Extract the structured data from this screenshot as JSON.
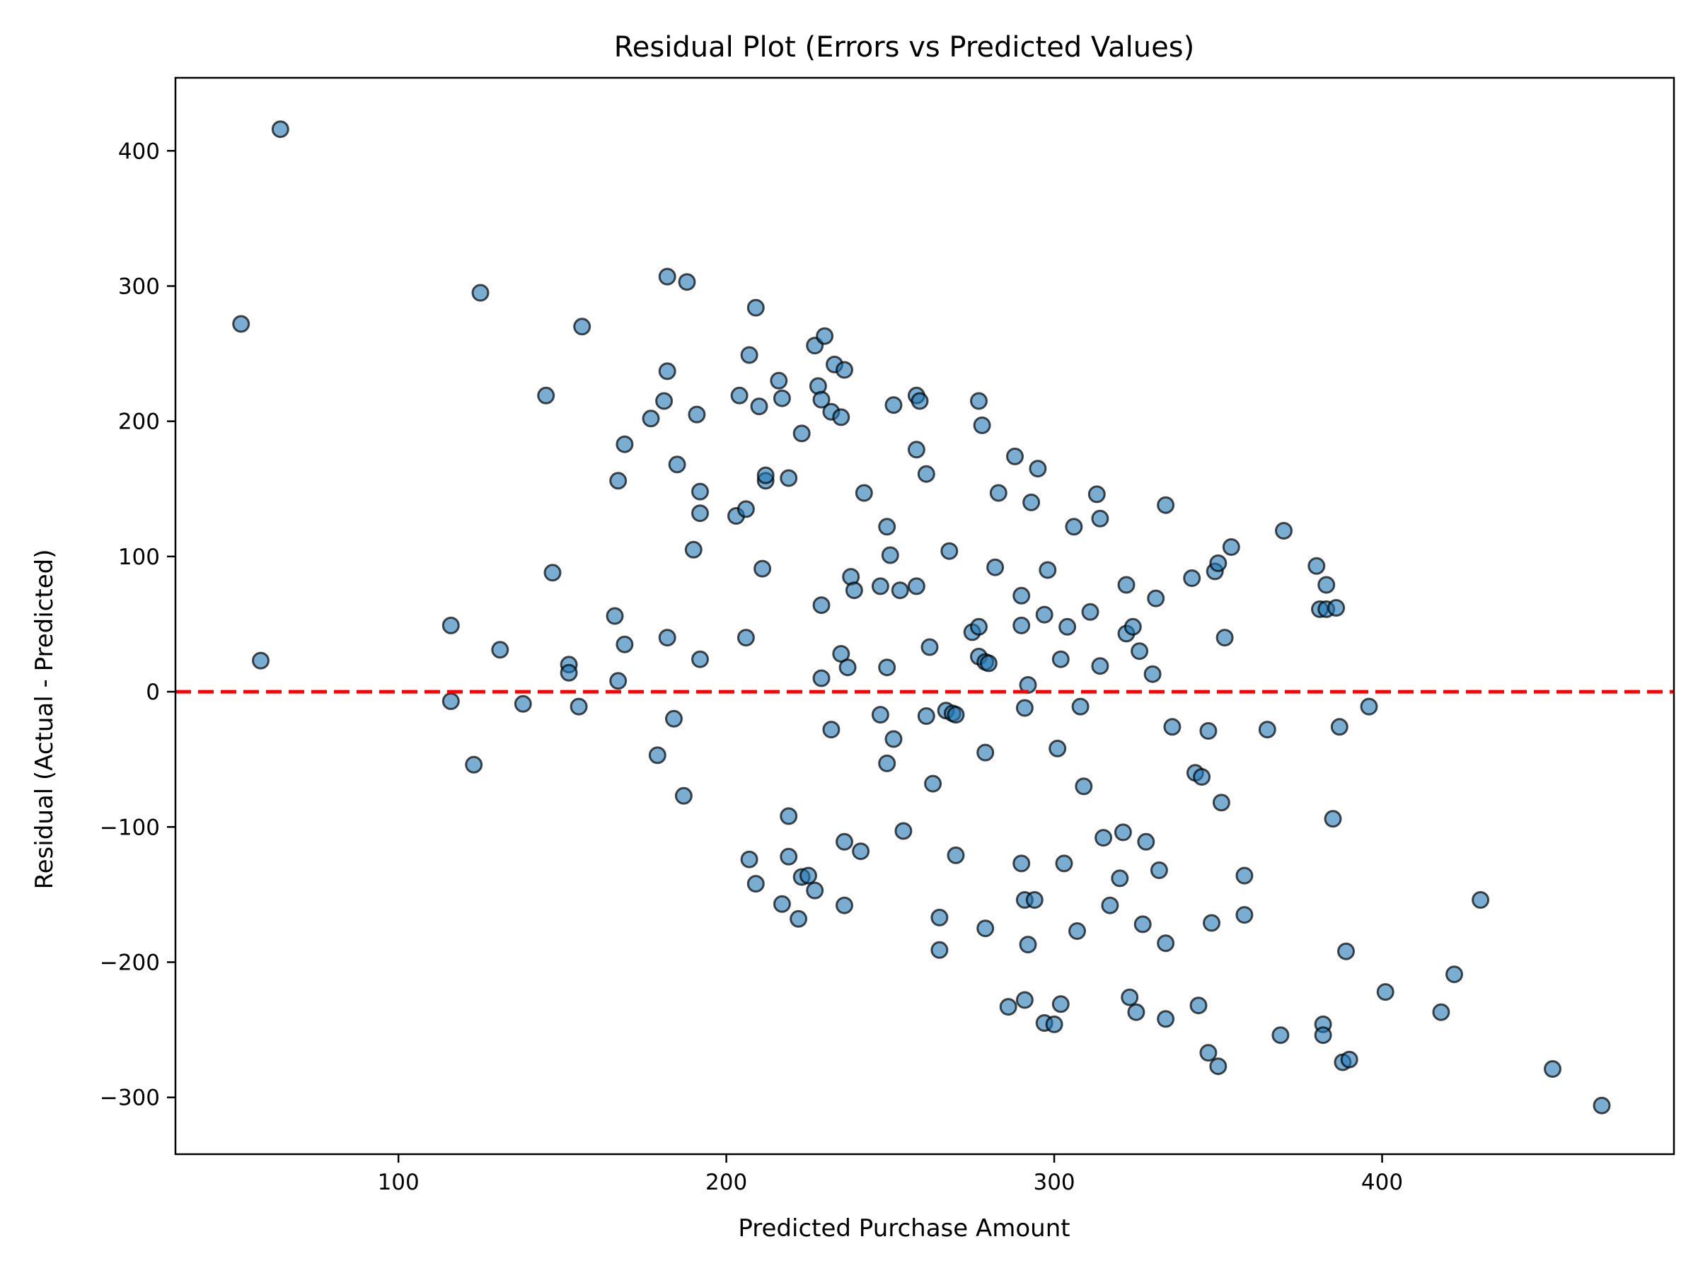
{
  "chart_data": {
    "type": "scatter",
    "title": "Residual Plot (Errors vs Predicted Values)",
    "xlabel": "Predicted Purchase Amount",
    "ylabel": "Residual (Actual - Predicted)",
    "xlim": [
      32,
      489
    ],
    "ylim": [
      -342,
      454
    ],
    "xticks": [
      100,
      200,
      300,
      400
    ],
    "xtick_labels": [
      "100",
      "200",
      "300",
      "400"
    ],
    "yticks": [
      -300,
      -200,
      -100,
      0,
      100,
      200,
      300,
      400
    ],
    "ytick_labels": [
      "−300",
      "−200",
      "−100",
      "0",
      "100",
      "200",
      "300",
      "400"
    ],
    "grid": false,
    "reference_line": {
      "y": 0,
      "style": "dashed",
      "color": "#ff0000"
    },
    "marker": {
      "fill": "#1f77b4",
      "fill_opacity": 0.6,
      "edge": "#000000"
    },
    "points": [
      {
        "x": 52,
        "y": 272
      },
      {
        "x": 58,
        "y": 23
      },
      {
        "x": 64,
        "y": 416
      },
      {
        "x": 116,
        "y": 49
      },
      {
        "x": 116,
        "y": -7
      },
      {
        "x": 123,
        "y": -54
      },
      {
        "x": 125,
        "y": 295
      },
      {
        "x": 131,
        "y": 31
      },
      {
        "x": 138,
        "y": -9
      },
      {
        "x": 145,
        "y": 219
      },
      {
        "x": 147,
        "y": 88
      },
      {
        "x": 152,
        "y": 20
      },
      {
        "x": 152,
        "y": 14
      },
      {
        "x": 155,
        "y": -11
      },
      {
        "x": 156,
        "y": 270
      },
      {
        "x": 166,
        "y": 56
      },
      {
        "x": 167,
        "y": 156
      },
      {
        "x": 167,
        "y": 8
      },
      {
        "x": 169,
        "y": 183
      },
      {
        "x": 169,
        "y": 35
      },
      {
        "x": 177,
        "y": 202
      },
      {
        "x": 179,
        "y": -47
      },
      {
        "x": 181,
        "y": 215
      },
      {
        "x": 182,
        "y": 307
      },
      {
        "x": 182,
        "y": 237
      },
      {
        "x": 182,
        "y": 40
      },
      {
        "x": 184,
        "y": -20
      },
      {
        "x": 185,
        "y": 168
      },
      {
        "x": 187,
        "y": -77
      },
      {
        "x": 188,
        "y": 303
      },
      {
        "x": 190,
        "y": 105
      },
      {
        "x": 191,
        "y": 205
      },
      {
        "x": 192,
        "y": 148
      },
      {
        "x": 192,
        "y": 132
      },
      {
        "x": 192,
        "y": 24
      },
      {
        "x": 203,
        "y": 130
      },
      {
        "x": 204,
        "y": 219
      },
      {
        "x": 206,
        "y": 135
      },
      {
        "x": 206,
        "y": 40
      },
      {
        "x": 207,
        "y": 249
      },
      {
        "x": 207,
        "y": -124
      },
      {
        "x": 209,
        "y": 284
      },
      {
        "x": 209,
        "y": -142
      },
      {
        "x": 210,
        "y": 211
      },
      {
        "x": 211,
        "y": 91
      },
      {
        "x": 212,
        "y": 156
      },
      {
        "x": 212,
        "y": 160
      },
      {
        "x": 216,
        "y": 230
      },
      {
        "x": 217,
        "y": 217
      },
      {
        "x": 217,
        "y": -157
      },
      {
        "x": 219,
        "y": 158
      },
      {
        "x": 219,
        "y": -92
      },
      {
        "x": 219,
        "y": -122
      },
      {
        "x": 222,
        "y": -168
      },
      {
        "x": 223,
        "y": 191
      },
      {
        "x": 223,
        "y": -137
      },
      {
        "x": 225,
        "y": -136
      },
      {
        "x": 227,
        "y": 256
      },
      {
        "x": 227,
        "y": -147
      },
      {
        "x": 228,
        "y": 226
      },
      {
        "x": 229,
        "y": 216
      },
      {
        "x": 229,
        "y": 10
      },
      {
        "x": 229,
        "y": 64
      },
      {
        "x": 230,
        "y": 263
      },
      {
        "x": 232,
        "y": 207
      },
      {
        "x": 232,
        "y": -28
      },
      {
        "x": 233,
        "y": 242
      },
      {
        "x": 235,
        "y": 203
      },
      {
        "x": 235,
        "y": 28
      },
      {
        "x": 236,
        "y": 238
      },
      {
        "x": 236,
        "y": -111
      },
      {
        "x": 236,
        "y": -158
      },
      {
        "x": 237,
        "y": 18
      },
      {
        "x": 238,
        "y": 85
      },
      {
        "x": 239,
        "y": 75
      },
      {
        "x": 241,
        "y": -118
      },
      {
        "x": 242,
        "y": 147
      },
      {
        "x": 247,
        "y": 78
      },
      {
        "x": 247,
        "y": -17
      },
      {
        "x": 249,
        "y": 122
      },
      {
        "x": 249,
        "y": 18
      },
      {
        "x": 249,
        "y": -53
      },
      {
        "x": 250,
        "y": 101
      },
      {
        "x": 251,
        "y": 212
      },
      {
        "x": 251,
        "y": -35
      },
      {
        "x": 253,
        "y": 75
      },
      {
        "x": 254,
        "y": -103
      },
      {
        "x": 258,
        "y": 219
      },
      {
        "x": 258,
        "y": 179
      },
      {
        "x": 258,
        "y": 78
      },
      {
        "x": 259,
        "y": 215
      },
      {
        "x": 261,
        "y": 161
      },
      {
        "x": 261,
        "y": -18
      },
      {
        "x": 262,
        "y": 33
      },
      {
        "x": 263,
        "y": -68
      },
      {
        "x": 265,
        "y": -167
      },
      {
        "x": 265,
        "y": -191
      },
      {
        "x": 267,
        "y": -14
      },
      {
        "x": 268,
        "y": 104
      },
      {
        "x": 269,
        "y": -16
      },
      {
        "x": 270,
        "y": -17
      },
      {
        "x": 270,
        "y": -121
      },
      {
        "x": 275,
        "y": 44
      },
      {
        "x": 277,
        "y": 48
      },
      {
        "x": 277,
        "y": 26
      },
      {
        "x": 277,
        "y": 215
      },
      {
        "x": 278,
        "y": 197
      },
      {
        "x": 279,
        "y": 22
      },
      {
        "x": 279,
        "y": -45
      },
      {
        "x": 279,
        "y": -175
      },
      {
        "x": 280,
        "y": 21
      },
      {
        "x": 282,
        "y": 92
      },
      {
        "x": 283,
        "y": 147
      },
      {
        "x": 286,
        "y": -233
      },
      {
        "x": 288,
        "y": 174
      },
      {
        "x": 290,
        "y": 71
      },
      {
        "x": 290,
        "y": 49
      },
      {
        "x": 290,
        "y": -127
      },
      {
        "x": 291,
        "y": -12
      },
      {
        "x": 291,
        "y": -154
      },
      {
        "x": 291,
        "y": -228
      },
      {
        "x": 292,
        "y": 5
      },
      {
        "x": 292,
        "y": -187
      },
      {
        "x": 293,
        "y": 140
      },
      {
        "x": 294,
        "y": -154
      },
      {
        "x": 295,
        "y": 165
      },
      {
        "x": 297,
        "y": 57
      },
      {
        "x": 297,
        "y": -245
      },
      {
        "x": 298,
        "y": 90
      },
      {
        "x": 300,
        "y": -246
      },
      {
        "x": 301,
        "y": -42
      },
      {
        "x": 302,
        "y": 24
      },
      {
        "x": 302,
        "y": -231
      },
      {
        "x": 303,
        "y": -127
      },
      {
        "x": 304,
        "y": 48
      },
      {
        "x": 306,
        "y": 122
      },
      {
        "x": 307,
        "y": -177
      },
      {
        "x": 308,
        "y": -11
      },
      {
        "x": 309,
        "y": -70
      },
      {
        "x": 311,
        "y": 59
      },
      {
        "x": 313,
        "y": 146
      },
      {
        "x": 314,
        "y": 128
      },
      {
        "x": 314,
        "y": 19
      },
      {
        "x": 315,
        "y": -108
      },
      {
        "x": 317,
        "y": -158
      },
      {
        "x": 320,
        "y": -138
      },
      {
        "x": 321,
        "y": -104
      },
      {
        "x": 322,
        "y": 79
      },
      {
        "x": 322,
        "y": 43
      },
      {
        "x": 323,
        "y": -226
      },
      {
        "x": 324,
        "y": 48
      },
      {
        "x": 325,
        "y": -237
      },
      {
        "x": 326,
        "y": 30
      },
      {
        "x": 327,
        "y": -172
      },
      {
        "x": 328,
        "y": -111
      },
      {
        "x": 330,
        "y": 13
      },
      {
        "x": 331,
        "y": 69
      },
      {
        "x": 332,
        "y": -132
      },
      {
        "x": 334,
        "y": 138
      },
      {
        "x": 334,
        "y": -186
      },
      {
        "x": 334,
        "y": -242
      },
      {
        "x": 336,
        "y": -26
      },
      {
        "x": 342,
        "y": 84
      },
      {
        "x": 343,
        "y": -60
      },
      {
        "x": 344,
        "y": -232
      },
      {
        "x": 345,
        "y": -63
      },
      {
        "x": 347,
        "y": -29
      },
      {
        "x": 347,
        "y": -267
      },
      {
        "x": 348,
        "y": -171
      },
      {
        "x": 349,
        "y": 89
      },
      {
        "x": 350,
        "y": -277
      },
      {
        "x": 350,
        "y": 95
      },
      {
        "x": 351,
        "y": -82
      },
      {
        "x": 352,
        "y": 40
      },
      {
        "x": 354,
        "y": 107
      },
      {
        "x": 358,
        "y": -136
      },
      {
        "x": 358,
        "y": -165
      },
      {
        "x": 365,
        "y": -28
      },
      {
        "x": 369,
        "y": -254
      },
      {
        "x": 370,
        "y": 119
      },
      {
        "x": 380,
        "y": 93
      },
      {
        "x": 381,
        "y": 61
      },
      {
        "x": 382,
        "y": -246
      },
      {
        "x": 382,
        "y": -254
      },
      {
        "x": 383,
        "y": 79
      },
      {
        "x": 383,
        "y": 61
      },
      {
        "x": 385,
        "y": -94
      },
      {
        "x": 386,
        "y": 62
      },
      {
        "x": 387,
        "y": -26
      },
      {
        "x": 388,
        "y": -274
      },
      {
        "x": 389,
        "y": -192
      },
      {
        "x": 390,
        "y": -272
      },
      {
        "x": 396,
        "y": -11
      },
      {
        "x": 401,
        "y": -222
      },
      {
        "x": 418,
        "y": -237
      },
      {
        "x": 422,
        "y": -209
      },
      {
        "x": 430,
        "y": -154
      },
      {
        "x": 452,
        "y": -279
      },
      {
        "x": 467,
        "y": -306
      }
    ]
  }
}
